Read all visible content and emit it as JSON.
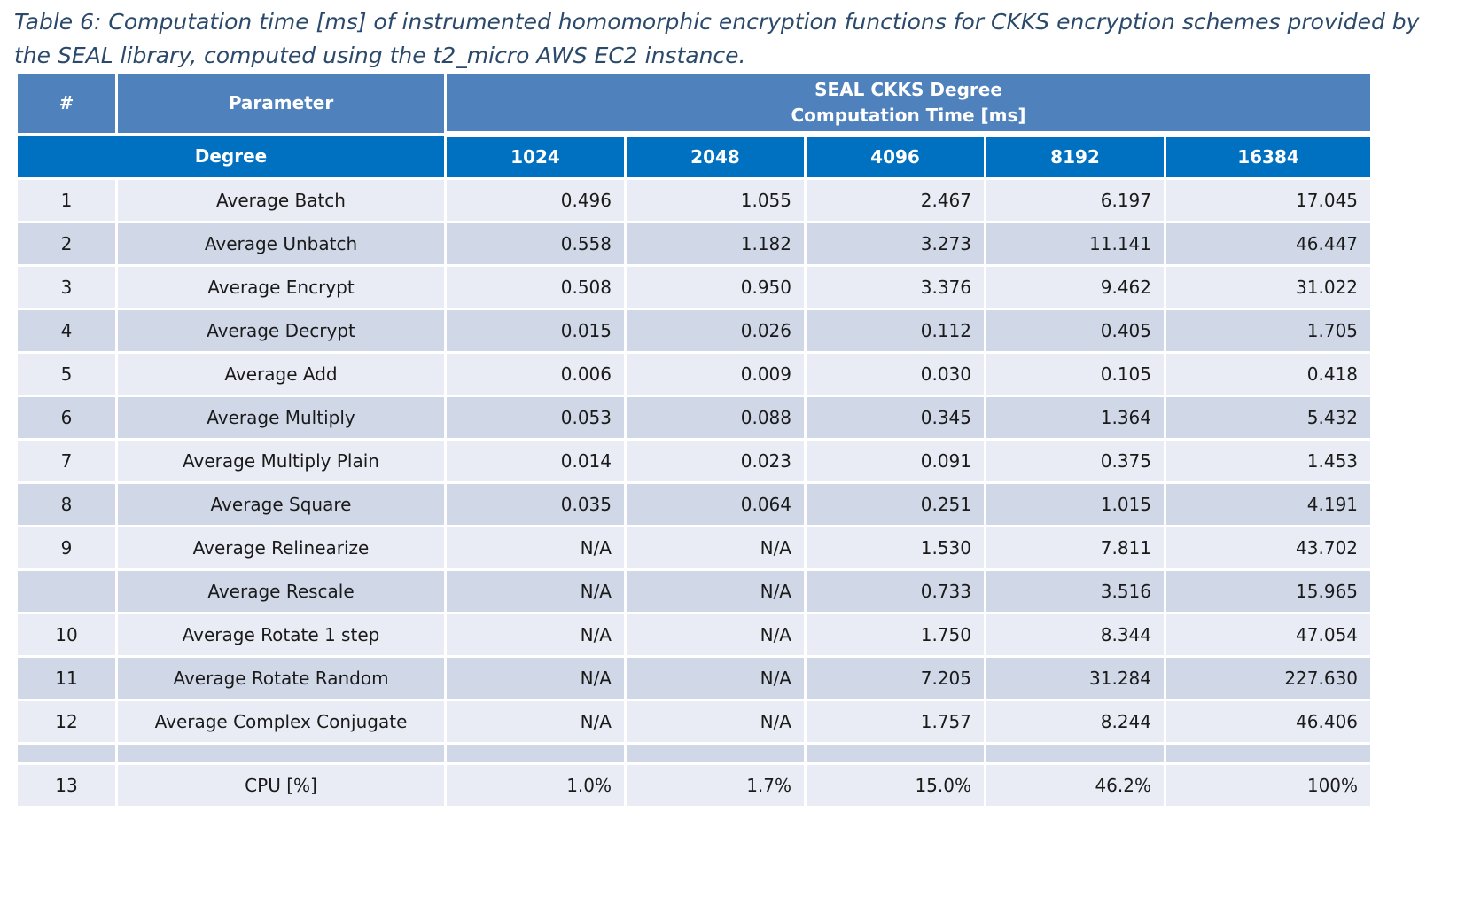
{
  "caption": "Table 6: Computation time [ms] of instrumented homomorphic encryption functions for CKKS encryption schemes provided by the SEAL library, computed using the t2_micro AWS EC2 instance.",
  "header": {
    "num": "#",
    "parameter": "Parameter",
    "group_line1": "SEAL CKKS Degree",
    "group_line2": "Computation Time [ms]",
    "degree_label": "Degree",
    "degrees": [
      "1024",
      "2048",
      "4096",
      "8192",
      "16384"
    ]
  },
  "rows": [
    {
      "num": "1",
      "param": "Average Batch",
      "values": [
        "0.496",
        "1.055",
        "2.467",
        "6.197",
        "17.045"
      ]
    },
    {
      "num": "2",
      "param": "Average Unbatch",
      "values": [
        "0.558",
        "1.182",
        "3.273",
        "11.141",
        "46.447"
      ]
    },
    {
      "num": "3",
      "param": "Average Encrypt",
      "values": [
        "0.508",
        "0.950",
        "3.376",
        "9.462",
        "31.022"
      ]
    },
    {
      "num": "4",
      "param": "Average Decrypt",
      "values": [
        "0.015",
        "0.026",
        "0.112",
        "0.405",
        "1.705"
      ]
    },
    {
      "num": "5",
      "param": "Average Add",
      "values": [
        "0.006",
        "0.009",
        "0.030",
        "0.105",
        "0.418"
      ]
    },
    {
      "num": "6",
      "param": "Average Multiply",
      "values": [
        "0.053",
        "0.088",
        "0.345",
        "1.364",
        "5.432"
      ]
    },
    {
      "num": "7",
      "param": "Average Multiply Plain",
      "values": [
        "0.014",
        "0.023",
        "0.091",
        "0.375",
        "1.453"
      ]
    },
    {
      "num": "8",
      "param": "Average Square",
      "values": [
        "0.035",
        "0.064",
        "0.251",
        "1.015",
        "4.191"
      ]
    },
    {
      "num": "9",
      "param": "Average Relinearize",
      "values": [
        "N/A",
        "N/A",
        "1.530",
        "7.811",
        "43.702"
      ]
    },
    {
      "num": "",
      "param": "Average Rescale",
      "values": [
        "N/A",
        "N/A",
        "0.733",
        "3.516",
        "15.965"
      ]
    },
    {
      "num": "10",
      "param": "Average Rotate 1 step",
      "values": [
        "N/A",
        "N/A",
        "1.750",
        "8.344",
        "47.054"
      ]
    },
    {
      "num": "11",
      "param": "Average Rotate Random",
      "values": [
        "N/A",
        "N/A",
        "7.205",
        "31.284",
        "227.630"
      ]
    },
    {
      "num": "12",
      "param": "Average Complex Conjugate",
      "values": [
        "N/A",
        "N/A",
        "1.757",
        "8.244",
        "46.406"
      ]
    },
    {
      "num": "13",
      "param": "CPU [%]",
      "values": [
        "1.0%",
        "1.7%",
        "15.0%",
        "46.2%",
        "100%"
      ]
    }
  ]
}
